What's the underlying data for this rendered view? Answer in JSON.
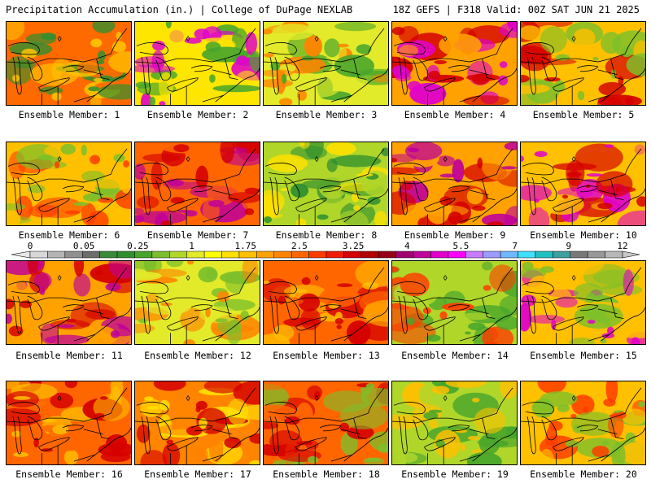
{
  "header": {
    "left_title": "Precipitation Accumulation (in.) | College of DuPage NEXLAB",
    "right_title": "18Z GEFS | F318 Valid: 00Z SAT JUN 21 2025"
  },
  "colorbar": {
    "tick_labels": [
      "0",
      "0.05",
      "0.25",
      "1",
      "1.75",
      "2.5",
      "3.25",
      "4",
      "5.5",
      "7",
      "9",
      "12"
    ],
    "colors": [
      "#d8d8d8",
      "#b4b4b4",
      "#909090",
      "#6c6c6c",
      "#3a8a3a",
      "#2f8f2f",
      "#47a52b",
      "#7dbf2a",
      "#b0d62a",
      "#e2ea2a",
      "#ffff00",
      "#ffe000",
      "#ffc000",
      "#ffa200",
      "#ff8400",
      "#ff6600",
      "#ff3c00",
      "#f21a00",
      "#d50000",
      "#b20000",
      "#960018",
      "#a0006e",
      "#c0009a",
      "#e000cc",
      "#ff00ff",
      "#c87bff",
      "#9b9bff",
      "#6fb8ff",
      "#40e0ff",
      "#20c0c0",
      "#3ca0a0",
      "#787878",
      "#989898",
      "#b8b8b8"
    ]
  },
  "members": [
    {
      "label": "Ensemble Member: 1",
      "palette": [
        "#ff6a00",
        "#ffc400",
        "#2f8f2f"
      ]
    },
    {
      "label": "Ensemble Member: 2",
      "palette": [
        "#ffe600",
        "#47a52b",
        "#e000cc"
      ]
    },
    {
      "label": "Ensemble Member: 3",
      "palette": [
        "#e2ea2a",
        "#47a52b",
        "#ff8400"
      ]
    },
    {
      "label": "Ensemble Member: 4",
      "palette": [
        "#ffa200",
        "#d50000",
        "#e000cc"
      ]
    },
    {
      "label": "Ensemble Member: 5",
      "palette": [
        "#ffc000",
        "#d50000",
        "#7dbf2a"
      ]
    },
    {
      "label": "Ensemble Member: 6",
      "palette": [
        "#ffc000",
        "#ff3c00",
        "#7dbf2a"
      ]
    },
    {
      "label": "Ensemble Member: 7",
      "palette": [
        "#ff6600",
        "#d50000",
        "#c0009a"
      ]
    },
    {
      "label": "Ensemble Member: 8",
      "palette": [
        "#b0d62a",
        "#2f8f2f",
        "#ffe000"
      ]
    },
    {
      "label": "Ensemble Member: 9",
      "palette": [
        "#ffa200",
        "#d50000",
        "#c0009a"
      ]
    },
    {
      "label": "Ensemble Member: 10",
      "palette": [
        "#ffc000",
        "#d50000",
        "#e000cc"
      ]
    },
    {
      "label": "Ensemble Member: 11",
      "palette": [
        "#ffa200",
        "#d50000",
        "#c0009a"
      ]
    },
    {
      "label": "Ensemble Member: 12",
      "palette": [
        "#e2ea2a",
        "#7dbf2a",
        "#ff8400"
      ]
    },
    {
      "label": "Ensemble Member: 13",
      "palette": [
        "#ff6600",
        "#d50000",
        "#ffc000"
      ]
    },
    {
      "label": "Ensemble Member: 14",
      "palette": [
        "#b0d62a",
        "#47a52b",
        "#ff3c00"
      ]
    },
    {
      "label": "Ensemble Member: 15",
      "palette": [
        "#ffc000",
        "#7dbf2a",
        "#e000cc"
      ]
    },
    {
      "label": "Ensemble Member: 16",
      "palette": [
        "#ff6600",
        "#d50000",
        "#ffc000"
      ]
    },
    {
      "label": "Ensemble Member: 17",
      "palette": [
        "#ff8400",
        "#d50000",
        "#ffe000"
      ]
    },
    {
      "label": "Ensemble Member: 18",
      "palette": [
        "#ff6600",
        "#d50000",
        "#7dbf2a"
      ]
    },
    {
      "label": "Ensemble Member: 19",
      "palette": [
        "#b0d62a",
        "#47a52b",
        "#ffc000"
      ]
    },
    {
      "label": "Ensemble Member: 20",
      "palette": [
        "#ffc000",
        "#7dbf2a",
        "#ff3c00"
      ]
    }
  ]
}
